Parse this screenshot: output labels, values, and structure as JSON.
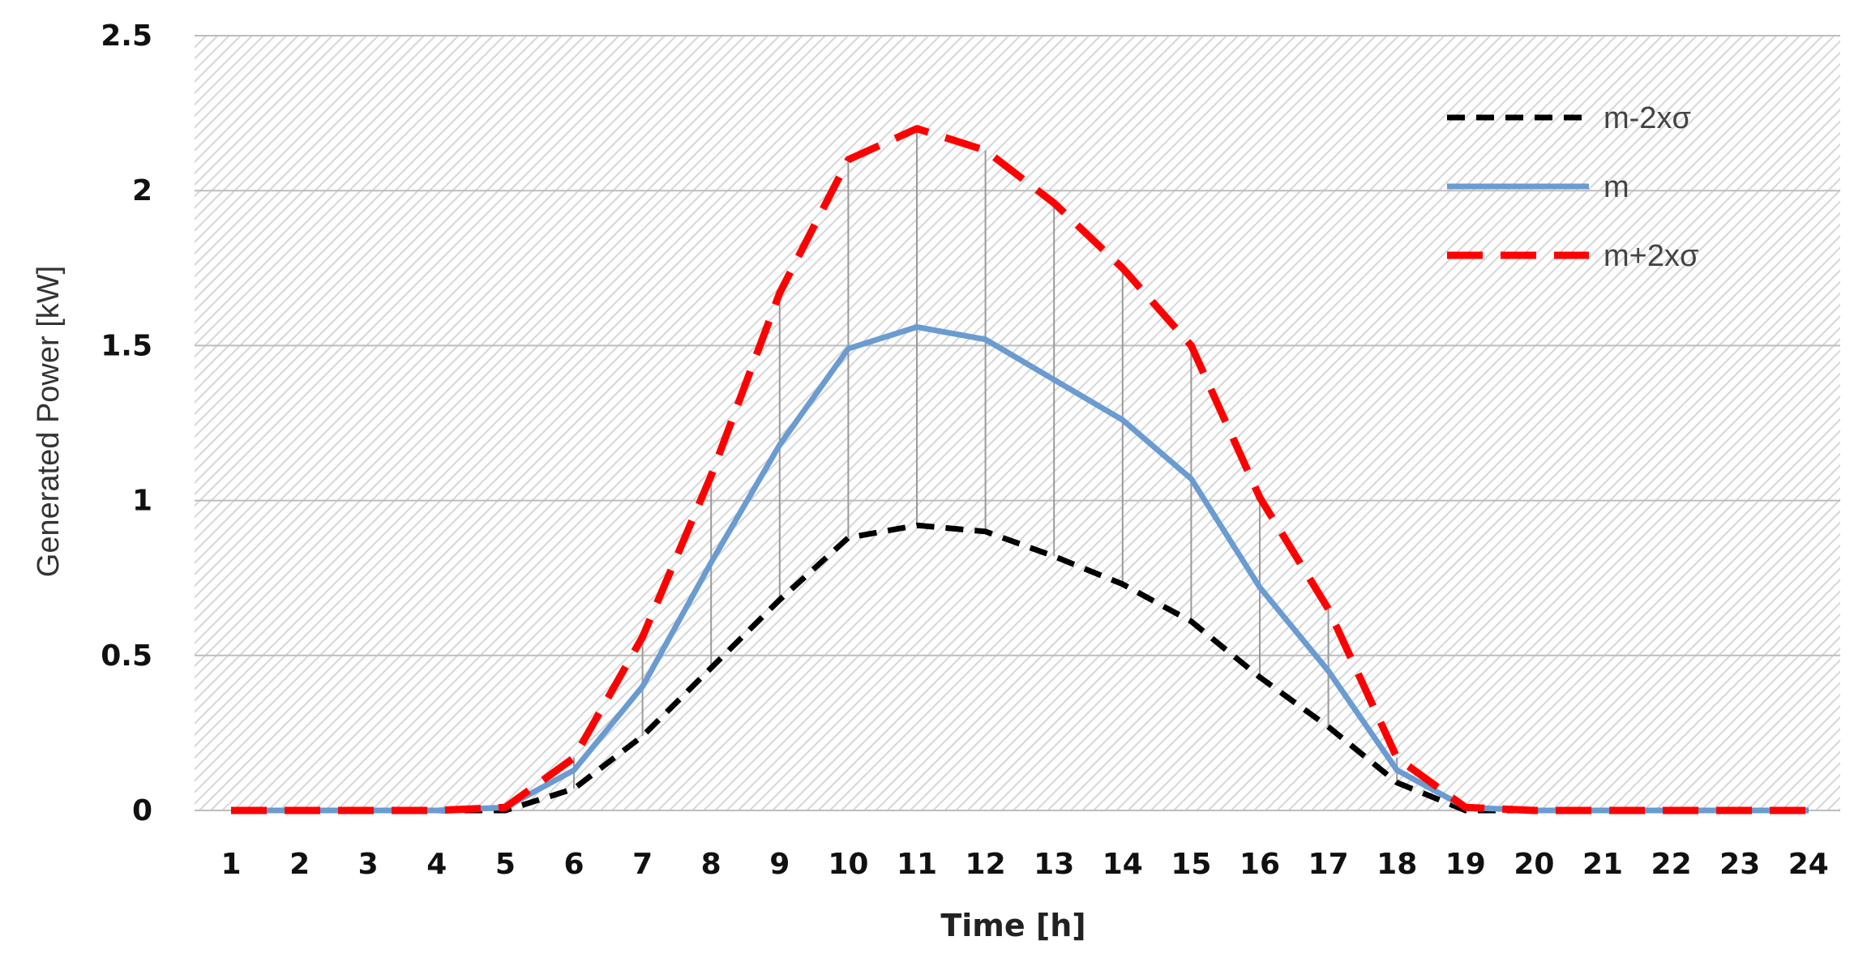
{
  "chart_data": {
    "type": "line",
    "xlabel": "Time [h]",
    "ylabel": "Generated Power [kW]",
    "x": [
      1,
      2,
      3,
      4,
      5,
      6,
      7,
      8,
      9,
      10,
      11,
      12,
      13,
      14,
      15,
      16,
      17,
      18,
      19,
      20,
      21,
      22,
      23,
      24
    ],
    "ylim": [
      0,
      2.5
    ],
    "yticks": [
      "0",
      "0.5",
      "1",
      "1.5",
      "2",
      "2.5"
    ],
    "xticks": [
      "1",
      "2",
      "3",
      "4",
      "5",
      "6",
      "7",
      "8",
      "9",
      "10",
      "11",
      "12",
      "13",
      "14",
      "15",
      "16",
      "17",
      "18",
      "19",
      "20",
      "21",
      "22",
      "23",
      "24"
    ],
    "grid": "horizontal",
    "legend_position": "top-right",
    "series": [
      {
        "name": "m-2xσ",
        "color": "#000000",
        "style": "dashed",
        "values": [
          0,
          0,
          0,
          0,
          0,
          0.07,
          0.24,
          0.46,
          0.68,
          0.88,
          0.92,
          0.9,
          0.82,
          0.73,
          0.61,
          0.43,
          0.27,
          0.09,
          0,
          0,
          0,
          0,
          0,
          0
        ]
      },
      {
        "name": "m",
        "color": "#6a9bd1",
        "style": "solid",
        "values": [
          0,
          0,
          0,
          0,
          0.01,
          0.13,
          0.4,
          0.8,
          1.18,
          1.49,
          1.56,
          1.52,
          1.39,
          1.26,
          1.07,
          0.72,
          0.45,
          0.13,
          0.01,
          0,
          0,
          0,
          0,
          0
        ]
      },
      {
        "name": "m+2xσ",
        "color": "#ff0000",
        "style": "dashed",
        "values": [
          0,
          0,
          0,
          0,
          0.01,
          0.17,
          0.56,
          1.08,
          1.67,
          2.1,
          2.2,
          2.13,
          1.96,
          1.75,
          1.5,
          1.01,
          0.65,
          0.17,
          0.01,
          0,
          0,
          0,
          0,
          0
        ]
      }
    ]
  }
}
